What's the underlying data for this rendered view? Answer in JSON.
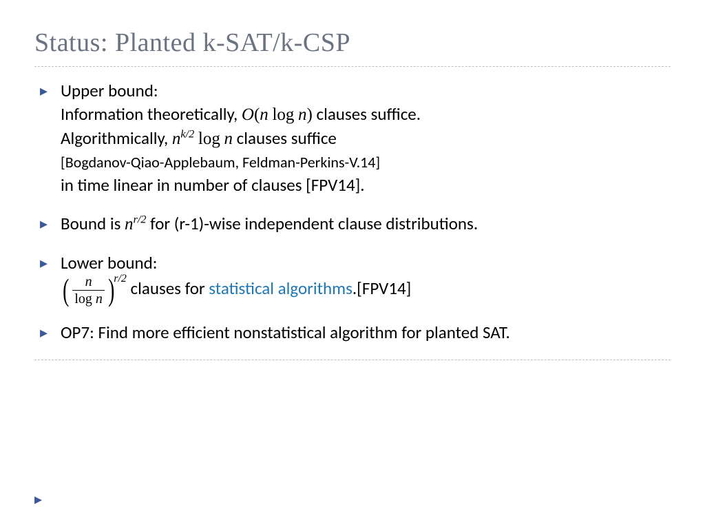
{
  "title": "Status: Planted k-SAT/k-CSP",
  "colors": {
    "title": "#6b7280",
    "accent": "#3b5998",
    "link": "#1f77b4",
    "divider": "#bfbfbf",
    "text": "#000000",
    "background": "#ffffff"
  },
  "typography": {
    "title_fontsize": 38,
    "body_fontsize": 25,
    "sub_fontsize": 22,
    "title_family": "Georgia serif",
    "body_family": "Gill Sans"
  },
  "bullets": [
    {
      "lead": "Upper bound:",
      "lines": [
        {
          "pre": "Information theoretically, ",
          "math": "O(n log n)",
          "post": " clauses suffice."
        },
        {
          "pre": "Algorithmically, ",
          "math_base": "n",
          "math_exp": "k/2",
          "math_tail": " log n",
          "post": "  clauses suffice"
        }
      ],
      "sub": "[Bogdanov-Qiao-Applebaum, Feldman-Perkins-V.14]",
      "tail": "in time linear in number of clauses [FPV14]."
    },
    {
      "pre": "Bound is ",
      "math_base": "n",
      "math_exp": "r/2",
      "post": " for (r-1)-wise independent clause distributions."
    },
    {
      "lead": "Lower bound:",
      "frac_num": "n",
      "frac_den": "log n",
      "frac_exp": "r/2",
      "pre_link": "  clauses for ",
      "link": "statistical algorithms",
      "post_link": ".[FPV14]"
    },
    {
      "text": "OP7: Find more efficient nonstatistical algorithm for planted SAT."
    }
  ]
}
